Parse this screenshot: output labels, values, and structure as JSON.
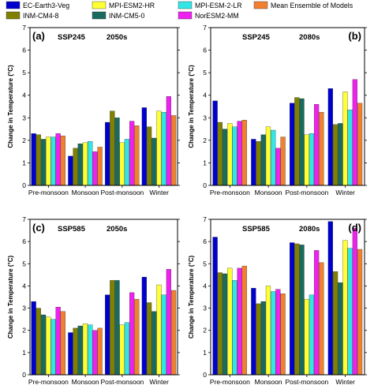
{
  "legend": [
    {
      "name": "EC-Earth3-Veg",
      "color": "#0000cd"
    },
    {
      "name": "INM-CM4-8",
      "color": "#808000"
    },
    {
      "name": "INM-CM5-0",
      "color": "#1a6b5f"
    },
    {
      "name": "MPI-ESM2-HR",
      "color": "#ffff33"
    },
    {
      "name": "MPI-ESM-2-LR",
      "color": "#33e6e6"
    },
    {
      "name": "NorESM2-MM",
      "color": "#ee22ee"
    },
    {
      "name": "Mean Ensemble of Models",
      "color": "#f08030"
    }
  ],
  "ylabel_text": "Change in Temperature (",
  "ylabel_unit": "°C",
  "ylabel_close": ")",
  "chart_data": [
    {
      "type": "bar",
      "panel_label": "(a)",
      "scenario": "SSP245",
      "period": "2050s",
      "ylabel": "Change in Temperature (°C)",
      "ylim": [
        0,
        7
      ],
      "yticks": [
        "0",
        "1",
        "2",
        "3",
        "4",
        "5",
        "6",
        "7"
      ],
      "categories": [
        "Pre-monsoon",
        "Monsoon",
        "Post-monsoon",
        "Winter"
      ],
      "series": [
        {
          "name": "EC-Earth3-Veg",
          "values": [
            2.3,
            1.3,
            2.8,
            3.45
          ]
        },
        {
          "name": "INM-CM4-8",
          "values": [
            2.25,
            1.65,
            3.3,
            2.6
          ]
        },
        {
          "name": "INM-CM5-0",
          "values": [
            2.05,
            1.85,
            3.0,
            2.1
          ]
        },
        {
          "name": "MPI-ESM2-HR",
          "values": [
            2.15,
            1.9,
            1.9,
            3.3
          ]
        },
        {
          "name": "MPI-ESM-2-LR",
          "values": [
            2.15,
            1.95,
            2.05,
            3.25
          ]
        },
        {
          "name": "NorESM2-MM",
          "values": [
            2.3,
            1.5,
            2.85,
            3.95
          ]
        },
        {
          "name": "Mean Ensemble of Models",
          "values": [
            2.2,
            1.7,
            2.65,
            3.1
          ]
        }
      ]
    },
    {
      "type": "bar",
      "panel_label": "(b)",
      "scenario": "SSP245",
      "period": "2080s",
      "ylabel": "Change in Temperature (°C)",
      "ylim": [
        0,
        7
      ],
      "yticks": [
        "0",
        "1",
        "2",
        "3",
        "4",
        "5",
        "6",
        "7"
      ],
      "categories": [
        "Pre-monsoon",
        "Monsoon",
        "Post-monsoon",
        "Winter"
      ],
      "series": [
        {
          "name": "EC-Earth3-Veg",
          "values": [
            3.75,
            2.05,
            3.65,
            4.3
          ]
        },
        {
          "name": "INM-CM4-8",
          "values": [
            2.8,
            1.95,
            3.9,
            2.7
          ]
        },
        {
          "name": "INM-CM5-0",
          "values": [
            2.5,
            2.25,
            3.85,
            2.75
          ]
        },
        {
          "name": "MPI-ESM2-HR",
          "values": [
            2.75,
            2.6,
            2.25,
            4.15
          ]
        },
        {
          "name": "MPI-ESM-2-LR",
          "values": [
            2.6,
            2.45,
            2.3,
            3.35
          ]
        },
        {
          "name": "NorESM2-MM",
          "values": [
            2.85,
            1.65,
            3.6,
            4.7
          ]
        },
        {
          "name": "Mean Ensemble of Models",
          "values": [
            2.9,
            2.15,
            3.25,
            3.65
          ]
        }
      ]
    },
    {
      "type": "bar",
      "panel_label": "(c)",
      "scenario": "SSP585",
      "period": "2050s",
      "ylabel": "Change in Temperature (°C)",
      "ylim": [
        0,
        7
      ],
      "yticks": [
        "0",
        "1",
        "2",
        "3",
        "4",
        "5",
        "6",
        "7"
      ],
      "categories": [
        "Pre-monsoon",
        "Monsoon",
        "Post-monsoon",
        "Winter"
      ],
      "series": [
        {
          "name": "EC-Earth3-Veg",
          "values": [
            3.3,
            1.9,
            3.6,
            4.4
          ]
        },
        {
          "name": "INM-CM4-8",
          "values": [
            3.0,
            2.1,
            4.25,
            3.25
          ]
        },
        {
          "name": "INM-CM5-0",
          "values": [
            2.7,
            2.2,
            4.25,
            2.85
          ]
        },
        {
          "name": "MPI-ESM2-HR",
          "values": [
            2.6,
            2.3,
            2.25,
            4.05
          ]
        },
        {
          "name": "MPI-ESM-2-LR",
          "values": [
            2.5,
            2.25,
            2.35,
            3.6
          ]
        },
        {
          "name": "NorESM2-MM",
          "values": [
            3.05,
            2.0,
            3.7,
            4.75
          ]
        },
        {
          "name": "Mean Ensemble of Models",
          "values": [
            2.85,
            2.1,
            3.4,
            3.8
          ]
        }
      ]
    },
    {
      "type": "bar",
      "panel_label": "(d)",
      "scenario": "SSP585",
      "period": "2080s",
      "ylabel": "Change in Temperature (°C)",
      "ylim": [
        0,
        7
      ],
      "yticks": [
        "0",
        "1",
        "2",
        "3",
        "4",
        "5",
        "6",
        "7"
      ],
      "categories": [
        "Pre-monsoon",
        "Monsoon",
        "Post-monsoon",
        "Winter"
      ],
      "series": [
        {
          "name": "EC-Earth3-Veg",
          "values": [
            6.2,
            3.9,
            5.95,
            6.9
          ]
        },
        {
          "name": "INM-CM4-8",
          "values": [
            4.6,
            3.2,
            5.9,
            4.65
          ]
        },
        {
          "name": "INM-CM5-0",
          "values": [
            4.55,
            3.3,
            5.85,
            4.15
          ]
        },
        {
          "name": "MPI-ESM2-HR",
          "values": [
            4.8,
            4.0,
            3.4,
            6.05
          ]
        },
        {
          "name": "MPI-ESM-2-LR",
          "values": [
            4.25,
            3.75,
            3.6,
            5.7
          ]
        },
        {
          "name": "NorESM2-MM",
          "values": [
            4.8,
            3.85,
            5.6,
            6.6
          ]
        },
        {
          "name": "Mean Ensemble of Models",
          "values": [
            4.9,
            3.65,
            5.05,
            5.65
          ]
        }
      ]
    }
  ]
}
